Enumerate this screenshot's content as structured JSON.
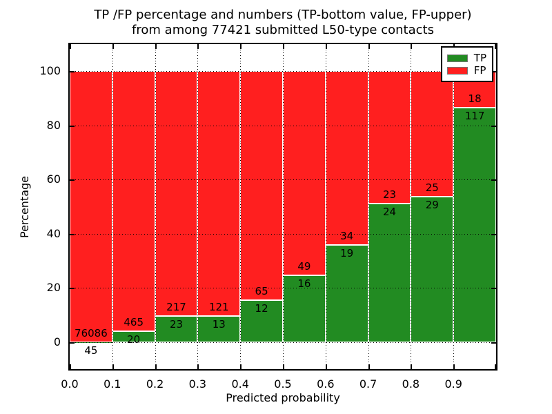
{
  "figure": {
    "title_line1": "TP /FP percentage and numbers (TP-bottom value, FP-upper)",
    "title_line2": "from among 77421 submitted L50-type contacts",
    "background_color": "#ffffff"
  },
  "chart_data": {
    "type": "bar",
    "stacked": true,
    "normalized_total": 100,
    "title": "TP /FP percentage and numbers (TP-bottom value, FP-upper)\nfrom among 77421 submitted L50-type contacts",
    "total_submitted": 77421,
    "xlabel": "Predicted probability",
    "ylabel": "Percentage",
    "xlim": [
      0.0,
      1.0
    ],
    "ylim": [
      -10,
      110
    ],
    "bin_width": 0.1,
    "categories": [
      "0.0-0.1",
      "0.1-0.2",
      "0.2-0.3",
      "0.3-0.4",
      "0.4-0.5",
      "0.5-0.6",
      "0.6-0.7",
      "0.7-0.8",
      "0.8-0.9",
      "0.9-1.0"
    ],
    "x_tick_labels": [
      "0.0",
      "0.1",
      "0.2",
      "0.3",
      "0.4",
      "0.5",
      "0.6",
      "0.7",
      "0.8",
      "0.9"
    ],
    "y_tick_values": [
      0,
      20,
      40,
      60,
      80,
      100
    ],
    "y_tick_labels": [
      "0",
      "20",
      "40",
      "60",
      "80",
      "100"
    ],
    "grid": {
      "enabled": true,
      "style": "dotted",
      "color": "#000000",
      "above_bars": true
    },
    "series": [
      {
        "name": "TP",
        "color": "#228b22",
        "counts": [
          45,
          20,
          23,
          13,
          12,
          16,
          19,
          24,
          29,
          117
        ],
        "percent": [
          0.06,
          4.12,
          9.58,
          9.7,
          15.58,
          24.62,
          35.85,
          51.06,
          53.7,
          86.67
        ]
      },
      {
        "name": "FP",
        "color": "#ff1f1f",
        "counts": [
          76086,
          465,
          217,
          121,
          65,
          49,
          34,
          23,
          25,
          18
        ],
        "percent": [
          99.94,
          95.88,
          90.42,
          90.3,
          84.42,
          75.38,
          64.15,
          48.94,
          46.3,
          13.33
        ]
      }
    ],
    "legend": {
      "position": "upper right",
      "entries": [
        "TP",
        "FP"
      ]
    }
  }
}
